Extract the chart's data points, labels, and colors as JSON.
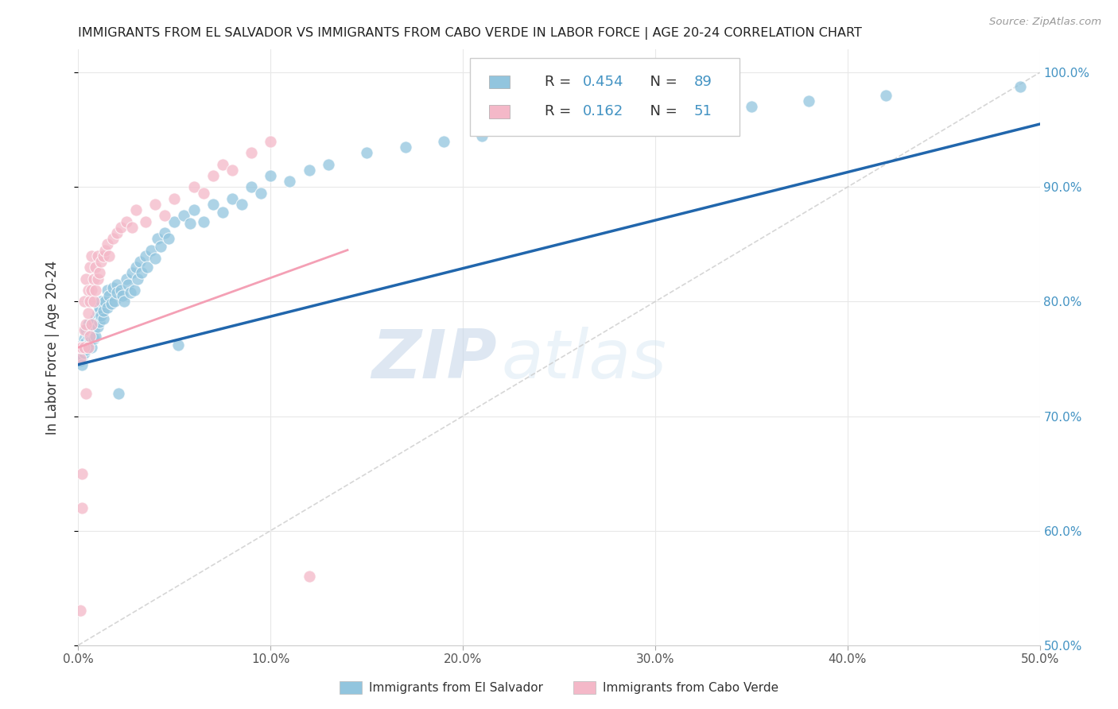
{
  "title": "IMMIGRANTS FROM EL SALVADOR VS IMMIGRANTS FROM CABO VERDE IN LABOR FORCE | AGE 20-24 CORRELATION CHART",
  "source": "Source: ZipAtlas.com",
  "ylabel": "In Labor Force | Age 20-24",
  "x_min": 0.0,
  "x_max": 0.5,
  "y_min": 0.5,
  "y_max": 1.02,
  "legend_R1": "0.454",
  "legend_N1": "89",
  "legend_R2": "0.162",
  "legend_N2": "51",
  "color_salvador": "#92c5de",
  "color_caboverde": "#f4b8c8",
  "line_color_salvador": "#2166ac",
  "line_color_caboverde": "#f4a0b5",
  "dashed_line_color": "#cccccc",
  "watermark_zip": "ZIP",
  "watermark_atlas": "atlas",
  "el_salvador_line_x0": 0.0,
  "el_salvador_line_y0": 0.745,
  "el_salvador_line_x1": 0.5,
  "el_salvador_line_y1": 0.955,
  "cabo_verde_line_x0": 0.0,
  "cabo_verde_line_y0": 0.76,
  "cabo_verde_line_x1": 0.14,
  "cabo_verde_line_y1": 0.845,
  "el_salvador_x": [
    0.001,
    0.001,
    0.002,
    0.002,
    0.002,
    0.003,
    0.003,
    0.003,
    0.004,
    0.004,
    0.004,
    0.005,
    0.005,
    0.005,
    0.006,
    0.006,
    0.007,
    0.007,
    0.008,
    0.008,
    0.008,
    0.009,
    0.009,
    0.01,
    0.01,
    0.011,
    0.011,
    0.012,
    0.012,
    0.013,
    0.013,
    0.014,
    0.015,
    0.015,
    0.016,
    0.017,
    0.018,
    0.019,
    0.02,
    0.02,
    0.021,
    0.022,
    0.023,
    0.024,
    0.025,
    0.026,
    0.027,
    0.028,
    0.029,
    0.03,
    0.031,
    0.032,
    0.033,
    0.035,
    0.036,
    0.038,
    0.04,
    0.041,
    0.043,
    0.045,
    0.047,
    0.05,
    0.052,
    0.055,
    0.058,
    0.06,
    0.065,
    0.07,
    0.075,
    0.08,
    0.085,
    0.09,
    0.095,
    0.1,
    0.11,
    0.12,
    0.13,
    0.15,
    0.17,
    0.19,
    0.21,
    0.23,
    0.26,
    0.3,
    0.33,
    0.35,
    0.38,
    0.42,
    0.49
  ],
  "el_salvador_y": [
    0.755,
    0.748,
    0.762,
    0.752,
    0.745,
    0.768,
    0.76,
    0.755,
    0.775,
    0.765,
    0.758,
    0.78,
    0.77,
    0.762,
    0.772,
    0.765,
    0.778,
    0.76,
    0.782,
    0.775,
    0.768,
    0.785,
    0.77,
    0.79,
    0.778,
    0.795,
    0.782,
    0.8,
    0.788,
    0.785,
    0.792,
    0.8,
    0.81,
    0.795,
    0.805,
    0.798,
    0.812,
    0.8,
    0.815,
    0.808,
    0.72,
    0.81,
    0.805,
    0.8,
    0.82,
    0.815,
    0.808,
    0.825,
    0.81,
    0.83,
    0.82,
    0.835,
    0.825,
    0.84,
    0.83,
    0.845,
    0.838,
    0.855,
    0.848,
    0.86,
    0.855,
    0.87,
    0.762,
    0.875,
    0.868,
    0.88,
    0.87,
    0.885,
    0.878,
    0.89,
    0.885,
    0.9,
    0.895,
    0.91,
    0.905,
    0.915,
    0.92,
    0.93,
    0.935,
    0.94,
    0.945,
    0.95,
    0.958,
    0.96,
    0.965,
    0.97,
    0.975,
    0.98,
    0.988
  ],
  "cabo_verde_x": [
    0.001,
    0.001,
    0.001,
    0.002,
    0.002,
    0.002,
    0.003,
    0.003,
    0.003,
    0.004,
    0.004,
    0.004,
    0.005,
    0.005,
    0.005,
    0.006,
    0.006,
    0.006,
    0.007,
    0.007,
    0.007,
    0.008,
    0.008,
    0.009,
    0.009,
    0.01,
    0.01,
    0.011,
    0.012,
    0.013,
    0.014,
    0.015,
    0.016,
    0.018,
    0.02,
    0.022,
    0.025,
    0.028,
    0.03,
    0.035,
    0.04,
    0.045,
    0.05,
    0.06,
    0.065,
    0.07,
    0.075,
    0.08,
    0.09,
    0.1,
    0.12
  ],
  "cabo_verde_y": [
    0.53,
    0.75,
    0.76,
    0.62,
    0.65,
    0.76,
    0.76,
    0.775,
    0.8,
    0.72,
    0.78,
    0.82,
    0.76,
    0.79,
    0.81,
    0.77,
    0.8,
    0.83,
    0.78,
    0.81,
    0.84,
    0.8,
    0.82,
    0.81,
    0.83,
    0.82,
    0.84,
    0.825,
    0.835,
    0.84,
    0.845,
    0.85,
    0.84,
    0.855,
    0.86,
    0.865,
    0.87,
    0.865,
    0.88,
    0.87,
    0.885,
    0.875,
    0.89,
    0.9,
    0.895,
    0.91,
    0.92,
    0.915,
    0.93,
    0.94,
    0.56
  ]
}
